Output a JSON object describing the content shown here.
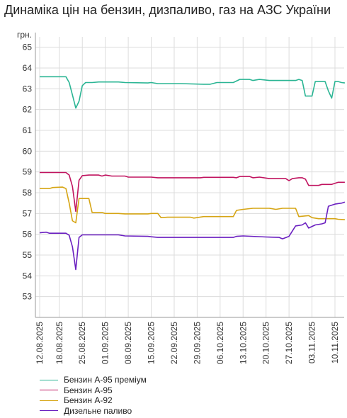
{
  "chart_data": {
    "type": "line",
    "title": "Динаміка цін на бензин, дизпаливо, газ на АЗС України",
    "ylabel": "грн.",
    "ylim": [
      52,
      65.5
    ],
    "yticks": [
      53,
      54,
      55,
      56,
      57,
      58,
      59,
      60,
      61,
      62,
      63,
      64,
      65
    ],
    "x_start": "12.08.2025",
    "x_end": "13.11.2025",
    "xticks": [
      "12.08.2025",
      "18.08.2025",
      "25.08.2025",
      "01.09.2025",
      "08.09.2025",
      "15.09.2025",
      "22.09.2025",
      "29.09.2025",
      "06.10.2025",
      "13.10.2025",
      "20.10.2025",
      "27.10.2025",
      "03.11.2025",
      "10.11.2025"
    ],
    "grid": true,
    "legend_position": "bottom-left",
    "series": [
      {
        "name": "Бензин А-95 преміум",
        "color": "#2bb594",
        "points": [
          [
            "12.08.2025",
            63.58
          ],
          [
            "20.08.2025",
            63.58
          ],
          [
            "21.08.2025",
            63.3
          ],
          [
            "22.08.2025",
            62.7
          ],
          [
            "23.08.2025",
            62.07
          ],
          [
            "24.08.2025",
            62.4
          ],
          [
            "25.08.2025",
            63.15
          ],
          [
            "26.08.2025",
            63.3
          ],
          [
            "28.08.2025",
            63.3
          ],
          [
            "30.08.2025",
            63.33
          ],
          [
            "01.09.2025",
            63.33
          ],
          [
            "05.09.2025",
            63.33
          ],
          [
            "07.09.2025",
            63.3
          ],
          [
            "14.09.2025",
            63.28
          ],
          [
            "15.09.2025",
            63.3
          ],
          [
            "17.09.2025",
            63.25
          ],
          [
            "24.09.2025",
            63.25
          ],
          [
            "01.10.2025",
            63.22
          ],
          [
            "03.10.2025",
            63.22
          ],
          [
            "05.10.2025",
            63.3
          ],
          [
            "10.10.2025",
            63.3
          ],
          [
            "12.10.2025",
            63.45
          ],
          [
            "15.10.2025",
            63.45
          ],
          [
            "16.10.2025",
            63.4
          ],
          [
            "18.10.2025",
            63.45
          ],
          [
            "21.10.2025",
            63.4
          ],
          [
            "29.10.2025",
            63.4
          ],
          [
            "30.10.2025",
            63.45
          ],
          [
            "31.10.2025",
            63.4
          ],
          [
            "01.11.2025",
            62.65
          ],
          [
            "03.11.2025",
            62.65
          ],
          [
            "04.11.2025",
            63.35
          ],
          [
            "07.11.2025",
            63.35
          ],
          [
            "08.11.2025",
            62.9
          ],
          [
            "09.11.2025",
            62.55
          ],
          [
            "10.11.2025",
            63.35
          ],
          [
            "11.11.2025",
            63.35
          ],
          [
            "12.11.2025",
            63.3
          ],
          [
            "13.11.2025",
            63.28
          ]
        ]
      },
      {
        "name": "Бензин А-95",
        "color": "#c0135f",
        "points": [
          [
            "12.08.2025",
            58.97
          ],
          [
            "20.08.2025",
            58.97
          ],
          [
            "21.08.2025",
            58.85
          ],
          [
            "22.08.2025",
            58.3
          ],
          [
            "23.08.2025",
            57.1
          ],
          [
            "24.08.2025",
            58.6
          ],
          [
            "25.08.2025",
            58.82
          ],
          [
            "27.08.2025",
            58.85
          ],
          [
            "30.08.2025",
            58.85
          ],
          [
            "31.08.2025",
            58.8
          ],
          [
            "01.09.2025",
            58.85
          ],
          [
            "03.09.2025",
            58.8
          ],
          [
            "07.09.2025",
            58.8
          ],
          [
            "08.09.2025",
            58.75
          ],
          [
            "15.09.2025",
            58.75
          ],
          [
            "17.09.2025",
            58.72
          ],
          [
            "30.09.2025",
            58.72
          ],
          [
            "01.10.2025",
            58.74
          ],
          [
            "10.10.2025",
            58.74
          ],
          [
            "11.10.2025",
            58.72
          ],
          [
            "12.10.2025",
            58.78
          ],
          [
            "15.10.2025",
            58.78
          ],
          [
            "16.10.2025",
            58.72
          ],
          [
            "18.10.2025",
            58.75
          ],
          [
            "21.10.2025",
            58.68
          ],
          [
            "26.10.2025",
            58.68
          ],
          [
            "27.10.2025",
            58.58
          ],
          [
            "28.10.2025",
            58.68
          ],
          [
            "30.10.2025",
            58.72
          ],
          [
            "31.10.2025",
            58.72
          ],
          [
            "01.11.2025",
            58.65
          ],
          [
            "02.11.2025",
            58.35
          ],
          [
            "05.11.2025",
            58.35
          ],
          [
            "06.11.2025",
            58.4
          ],
          [
            "09.11.2025",
            58.4
          ],
          [
            "11.11.2025",
            58.5
          ],
          [
            "13.11.2025",
            58.5
          ]
        ]
      },
      {
        "name": "Бензин А-92",
        "color": "#d6a514",
        "points": [
          [
            "12.08.2025",
            58.2
          ],
          [
            "15.08.2025",
            58.2
          ],
          [
            "16.08.2025",
            58.25
          ],
          [
            "19.08.2025",
            58.27
          ],
          [
            "20.08.2025",
            58.2
          ],
          [
            "21.08.2025",
            57.5
          ],
          [
            "22.08.2025",
            56.65
          ],
          [
            "23.08.2025",
            56.55
          ],
          [
            "24.08.2025",
            57.72
          ],
          [
            "27.08.2025",
            57.72
          ],
          [
            "28.08.2025",
            57.05
          ],
          [
            "31.08.2025",
            57.05
          ],
          [
            "01.09.2025",
            57.0
          ],
          [
            "05.09.2025",
            57.0
          ],
          [
            "07.09.2025",
            56.98
          ],
          [
            "14.09.2025",
            56.98
          ],
          [
            "15.09.2025",
            57.0
          ],
          [
            "17.09.2025",
            57.0
          ],
          [
            "18.09.2025",
            56.8
          ],
          [
            "20.09.2025",
            56.82
          ],
          [
            "27.09.2025",
            56.82
          ],
          [
            "28.09.2025",
            56.78
          ],
          [
            "01.10.2025",
            56.85
          ],
          [
            "10.10.2025",
            56.85
          ],
          [
            "11.10.2025",
            57.15
          ],
          [
            "13.10.2025",
            57.2
          ],
          [
            "16.10.2025",
            57.25
          ],
          [
            "21.10.2025",
            57.25
          ],
          [
            "23.10.2025",
            57.2
          ],
          [
            "25.10.2025",
            57.25
          ],
          [
            "29.10.2025",
            57.25
          ],
          [
            "30.10.2025",
            56.85
          ],
          [
            "02.11.2025",
            56.9
          ],
          [
            "03.11.2025",
            56.8
          ],
          [
            "05.11.2025",
            56.75
          ],
          [
            "10.11.2025",
            56.75
          ],
          [
            "11.11.2025",
            56.72
          ],
          [
            "13.11.2025",
            56.7
          ]
        ]
      },
      {
        "name": "Дизельне паливо",
        "color": "#6a1fc0",
        "points": [
          [
            "12.08.2025",
            56.07
          ],
          [
            "14.08.2025",
            56.1
          ],
          [
            "15.08.2025",
            56.05
          ],
          [
            "20.08.2025",
            56.05
          ],
          [
            "21.08.2025",
            55.95
          ],
          [
            "22.08.2025",
            55.4
          ],
          [
            "23.08.2025",
            54.3
          ],
          [
            "24.08.2025",
            55.85
          ],
          [
            "25.08.2025",
            55.97
          ],
          [
            "05.09.2025",
            55.97
          ],
          [
            "07.09.2025",
            55.92
          ],
          [
            "14.09.2025",
            55.9
          ],
          [
            "15.09.2025",
            55.88
          ],
          [
            "17.09.2025",
            55.85
          ],
          [
            "10.10.2025",
            55.85
          ],
          [
            "11.10.2025",
            55.9
          ],
          [
            "13.10.2025",
            55.92
          ],
          [
            "20.10.2025",
            55.87
          ],
          [
            "24.10.2025",
            55.85
          ],
          [
            "25.10.2025",
            55.78
          ],
          [
            "27.10.2025",
            55.9
          ],
          [
            "29.10.2025",
            56.4
          ],
          [
            "31.10.2025",
            56.45
          ],
          [
            "01.11.2025",
            56.55
          ],
          [
            "02.11.2025",
            56.3
          ],
          [
            "04.11.2025",
            56.45
          ],
          [
            "06.11.2025",
            56.5
          ],
          [
            "07.11.2025",
            56.55
          ],
          [
            "08.11.2025",
            57.35
          ],
          [
            "10.11.2025",
            57.45
          ],
          [
            "12.11.2025",
            57.5
          ],
          [
            "13.11.2025",
            57.55
          ]
        ]
      }
    ]
  }
}
